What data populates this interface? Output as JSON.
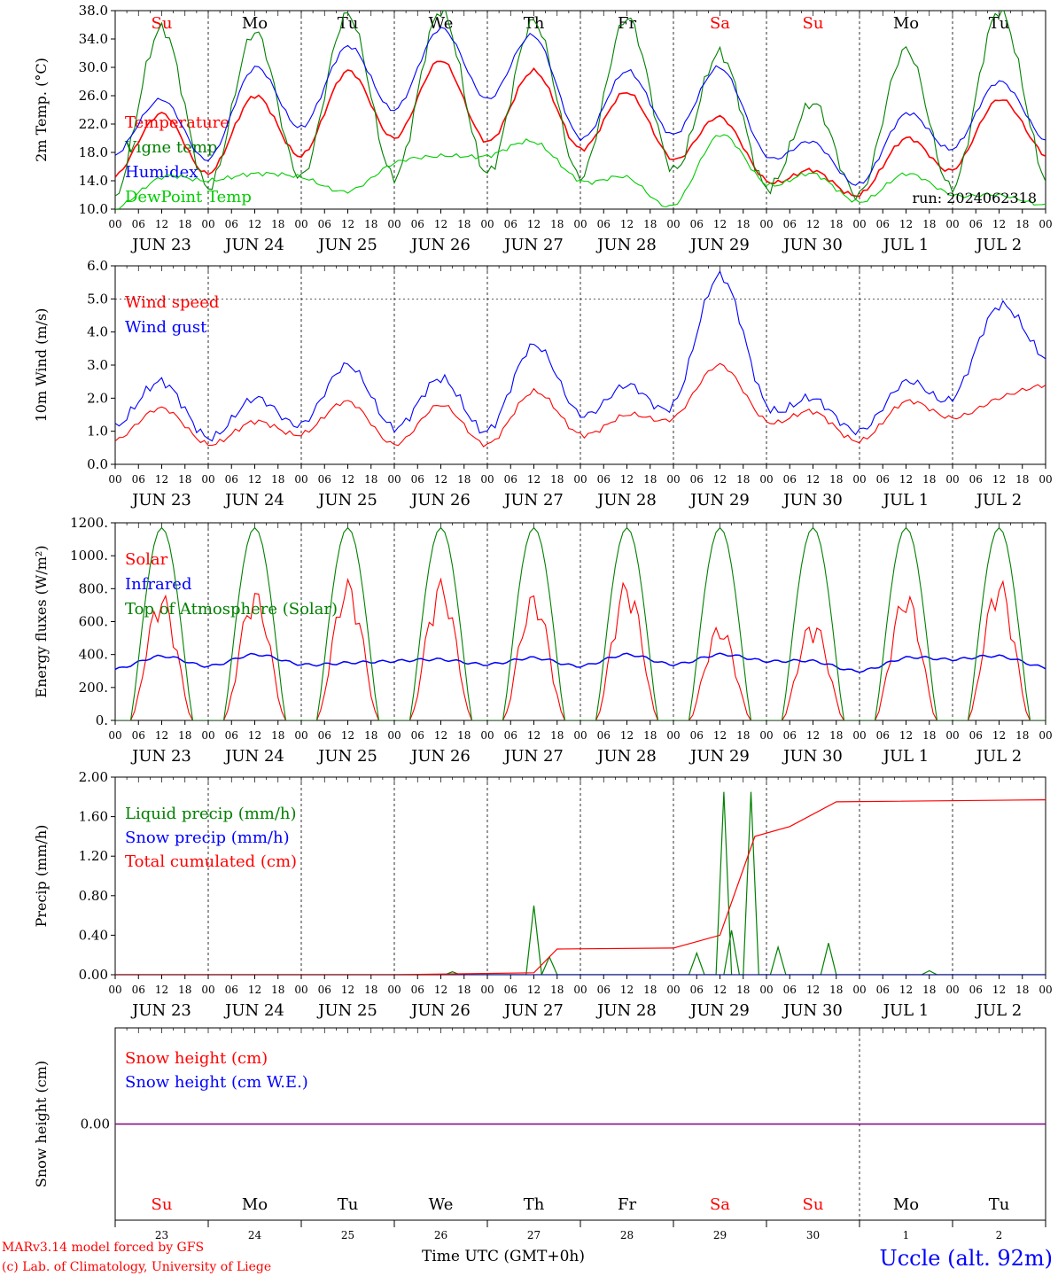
{
  "footer": {
    "model_line": "MARv3.14 model forced by GFS",
    "copyright_line": "(c) Lab. of Climatology, University of Liege",
    "time_label": "Time UTC (GMT+0h)",
    "station": "Uccle (alt. 92m)"
  },
  "colors": {
    "red": "#ff0000",
    "blue": "#0000ff",
    "green": "#008000",
    "lime": "#00cc00",
    "purple": "#800080"
  },
  "hour_ticks": [
    "00",
    "06",
    "12",
    "18"
  ],
  "date_labels": [
    "JUN 23",
    "JUN 24",
    "JUN 25",
    "JUN 26",
    "JUN 27",
    "JUN 28",
    "JUN 29",
    "JUN 30",
    "JUL  1",
    "JUL  2"
  ],
  "weekday_labels": [
    {
      "text": "Su",
      "color": "red"
    },
    {
      "text": "Mo",
      "color": "black"
    },
    {
      "text": "Tu",
      "color": "black"
    },
    {
      "text": "We",
      "color": "black"
    },
    {
      "text": "Th",
      "color": "black"
    },
    {
      "text": "Fr",
      "color": "black"
    },
    {
      "text": "Sa",
      "color": "red"
    },
    {
      "text": "Su",
      "color": "red"
    },
    {
      "text": "Mo",
      "color": "black"
    },
    {
      "text": "Tu",
      "color": "black"
    }
  ],
  "day_numbers": [
    "23",
    "24",
    "25",
    "26",
    "27",
    "28",
    "29",
    "30",
    "1",
    "2"
  ],
  "chart_data": [
    {
      "type": "line",
      "ylabel": "2m Temp. (°C)",
      "ylim": [
        10.0,
        38.0
      ],
      "yticks": [
        "10.0",
        "14.0",
        "18.0",
        "22.0",
        "26.0",
        "30.0",
        "34.0",
        "38.0"
      ],
      "annotation": "run: 2024062318",
      "legend_placement": "left",
      "x": [
        "2024-06-23T00",
        "2024-06-23T12",
        "2024-06-24T00",
        "2024-06-24T12",
        "2024-06-25T00",
        "2024-06-25T12",
        "2024-06-26T00",
        "2024-06-26T12",
        "2024-06-27T00",
        "2024-06-27T12",
        "2024-06-28T00",
        "2024-06-28T12",
        "2024-06-29T00",
        "2024-06-29T12",
        "2024-06-30T00",
        "2024-06-30T12",
        "2024-07-01T00",
        "2024-07-01T12",
        "2024-07-02T00",
        "2024-07-02T12",
        "2024-07-03T00"
      ],
      "series": [
        {
          "name": "Temperature",
          "color": "red",
          "values": [
            14.5,
            23.5,
            15.0,
            26.0,
            17.5,
            29.5,
            20.0,
            31.0,
            19.5,
            29.5,
            18.5,
            26.5,
            17.0,
            23.0,
            14.0,
            15.5,
            12.0,
            20.0,
            15.5,
            25.5,
            17.5
          ]
        },
        {
          "name": "Vigne temp",
          "color": "green",
          "values": [
            11.0,
            35.5,
            13.0,
            35.0,
            14.5,
            37.5,
            14.5,
            38.0,
            15.0,
            36.5,
            14.5,
            37.0,
            15.5,
            32.0,
            13.0,
            25.0,
            12.0,
            32.5,
            13.0,
            38.0,
            14.0
          ]
        },
        {
          "name": "Humidex",
          "color": "blue",
          "values": [
            17.5,
            25.5,
            17.0,
            30.0,
            21.5,
            33.0,
            24.0,
            35.5,
            25.5,
            34.5,
            20.0,
            29.5,
            20.5,
            30.0,
            17.5,
            19.5,
            13.5,
            23.5,
            18.5,
            28.0,
            19.5
          ]
        },
        {
          "name": "DewPoint Temp",
          "color": "lime",
          "values": [
            10.0,
            14.5,
            14.0,
            15.0,
            14.5,
            12.5,
            16.5,
            17.5,
            17.5,
            19.5,
            14.0,
            14.5,
            10.5,
            20.5,
            13.5,
            15.0,
            11.0,
            15.0,
            12.0,
            12.0,
            10.5
          ]
        }
      ]
    },
    {
      "type": "line",
      "ylabel": "10m Wind (m/s)",
      "ylim": [
        0.0,
        6.0
      ],
      "yticks": [
        "0.0",
        "1.0",
        "2.0",
        "3.0",
        "4.0",
        "5.0",
        "6.0"
      ],
      "legend_placement": "left",
      "x": [
        "2024-06-23T00",
        "2024-06-23T12",
        "2024-06-24T00",
        "2024-06-24T12",
        "2024-06-25T00",
        "2024-06-25T12",
        "2024-06-26T00",
        "2024-06-26T12",
        "2024-06-27T00",
        "2024-06-27T12",
        "2024-06-28T00",
        "2024-06-28T12",
        "2024-06-29T00",
        "2024-06-29T12",
        "2024-06-30T00",
        "2024-06-30T12",
        "2024-07-01T00",
        "2024-07-01T12",
        "2024-07-02T00",
        "2024-07-02T12",
        "2024-07-03T00"
      ],
      "series": [
        {
          "name": "Wind speed",
          "color": "red",
          "values": [
            0.7,
            1.7,
            0.6,
            1.3,
            0.9,
            1.9,
            0.6,
            1.8,
            0.6,
            2.2,
            0.9,
            1.5,
            1.4,
            3.0,
            1.3,
            1.6,
            0.7,
            1.9,
            1.4,
            2.0,
            2.4
          ]
        },
        {
          "name": "Wind gust",
          "color": "blue",
          "values": [
            1.1,
            2.5,
            0.8,
            2.0,
            1.2,
            3.0,
            1.1,
            2.6,
            1.0,
            3.6,
            1.5,
            2.4,
            1.8,
            5.7,
            1.8,
            2.0,
            1.0,
            2.5,
            2.0,
            4.8,
            3.2
          ]
        }
      ]
    },
    {
      "type": "line",
      "ylabel": "Energy fluxes (W/m²)",
      "ylim": [
        0,
        1200
      ],
      "yticks": [
        "0.",
        "200.",
        "400.",
        "600.",
        "800.",
        "1000.",
        "1200."
      ],
      "legend_placement": "left",
      "series": [
        {
          "name": "Solar",
          "color": "red",
          "daily_peak": [
            780,
            800,
            860,
            860,
            780,
            860,
            590,
            620,
            790,
            870
          ]
        },
        {
          "name": "Infrared",
          "color": "blue",
          "values": [
            310,
            390,
            330,
            400,
            340,
            350,
            360,
            370,
            340,
            380,
            330,
            400,
            340,
            400,
            360,
            360,
            300,
            380,
            370,
            390,
            320
          ]
        },
        {
          "name": "Top of Atmosphere (Solar)",
          "color": "green",
          "daily_peak": [
            1170,
            1170,
            1170,
            1170,
            1170,
            1170,
            1170,
            1170,
            1170,
            1170
          ]
        }
      ]
    },
    {
      "type": "line",
      "ylabel": "Precip (mm/h)",
      "ylim": [
        0.0,
        2.0
      ],
      "yticks": [
        "0.00",
        "0.40",
        "0.80",
        "1.20",
        "1.60",
        "2.00"
      ],
      "legend_placement": "left",
      "series": [
        {
          "name": "Liquid precip (mm/h)",
          "color": "green",
          "points": [
            [
              "2024-06-26T15",
              0.03
            ],
            [
              "2024-06-27T12",
              0.7
            ],
            [
              "2024-06-27T16",
              0.18
            ],
            [
              "2024-06-29T06",
              0.22
            ],
            [
              "2024-06-29T13",
              1.85
            ],
            [
              "2024-06-29T15",
              0.45
            ],
            [
              "2024-06-29T20",
              1.85
            ],
            [
              "2024-06-30T03",
              0.28
            ],
            [
              "2024-06-30T16",
              0.32
            ],
            [
              "2024-07-01T18",
              0.04
            ]
          ]
        },
        {
          "name": "Snow precip (mm/h)",
          "color": "blue",
          "values": [
            0,
            0
          ]
        },
        {
          "name": "Total cumulated (cm)",
          "color": "red",
          "points": [
            [
              "2024-06-26T00",
              0.0
            ],
            [
              "2024-06-27T12",
              0.02
            ],
            [
              "2024-06-27T18",
              0.26
            ],
            [
              "2024-06-29T00",
              0.27
            ],
            [
              "2024-06-29T12",
              0.4
            ],
            [
              "2024-06-29T21",
              1.4
            ],
            [
              "2024-06-30T06",
              1.5
            ],
            [
              "2024-06-30T18",
              1.75
            ],
            [
              "2024-07-03T00",
              1.77
            ]
          ]
        }
      ]
    },
    {
      "type": "line",
      "ylabel": "Snow height (cm)",
      "ylim": [
        -1,
        1
      ],
      "yticks": [
        "0.00"
      ],
      "legend_placement": "left",
      "series": [
        {
          "name": "Snow height (cm)",
          "color": "red",
          "values": [
            0,
            0
          ]
        },
        {
          "name": "Snow height (cm W.E.)",
          "color": "blue",
          "values": [
            0,
            0
          ]
        }
      ]
    }
  ]
}
